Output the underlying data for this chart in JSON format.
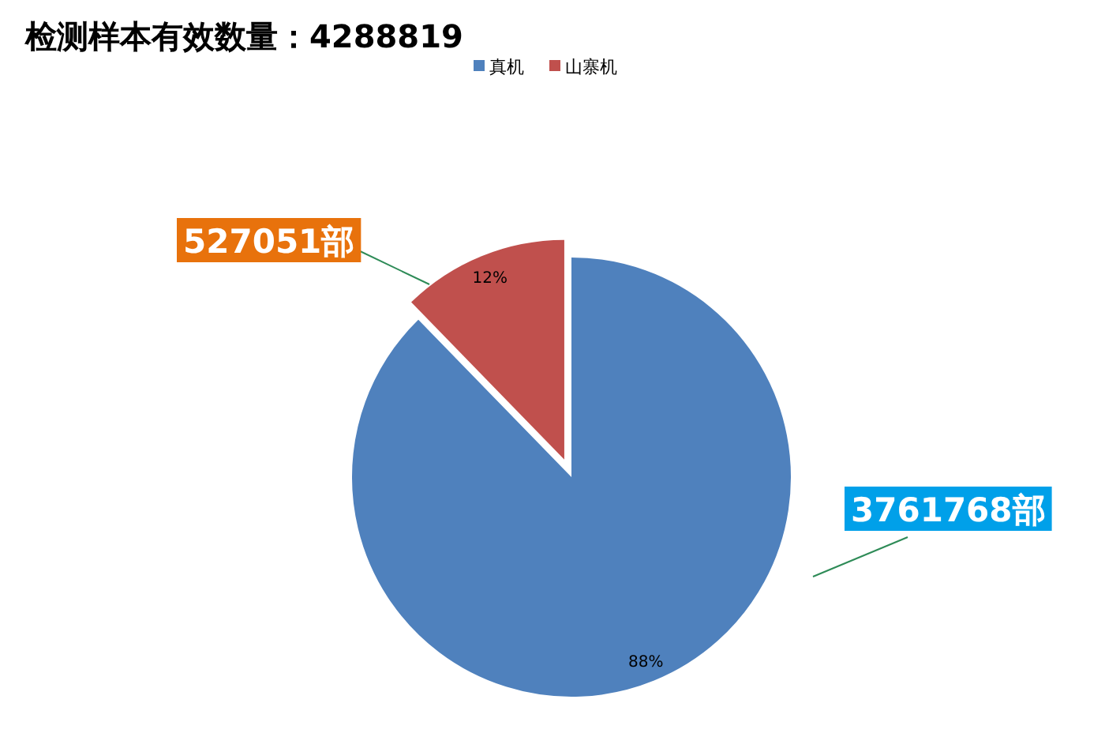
{
  "chart_data": {
    "type": "pie",
    "title": "检测样本有效数量：4288819",
    "categories": [
      "真机",
      "山寨机"
    ],
    "values": [
      3761768,
      527051
    ],
    "colors": [
      "#4f81bd",
      "#c0504d"
    ],
    "value_labels": [
      "3761768部",
      "527051部"
    ],
    "annotations": [
      {
        "text": "88%",
        "x": "真机"
      },
      {
        "text": "12%",
        "x": "山寨机"
      }
    ],
    "legend": "top"
  }
}
